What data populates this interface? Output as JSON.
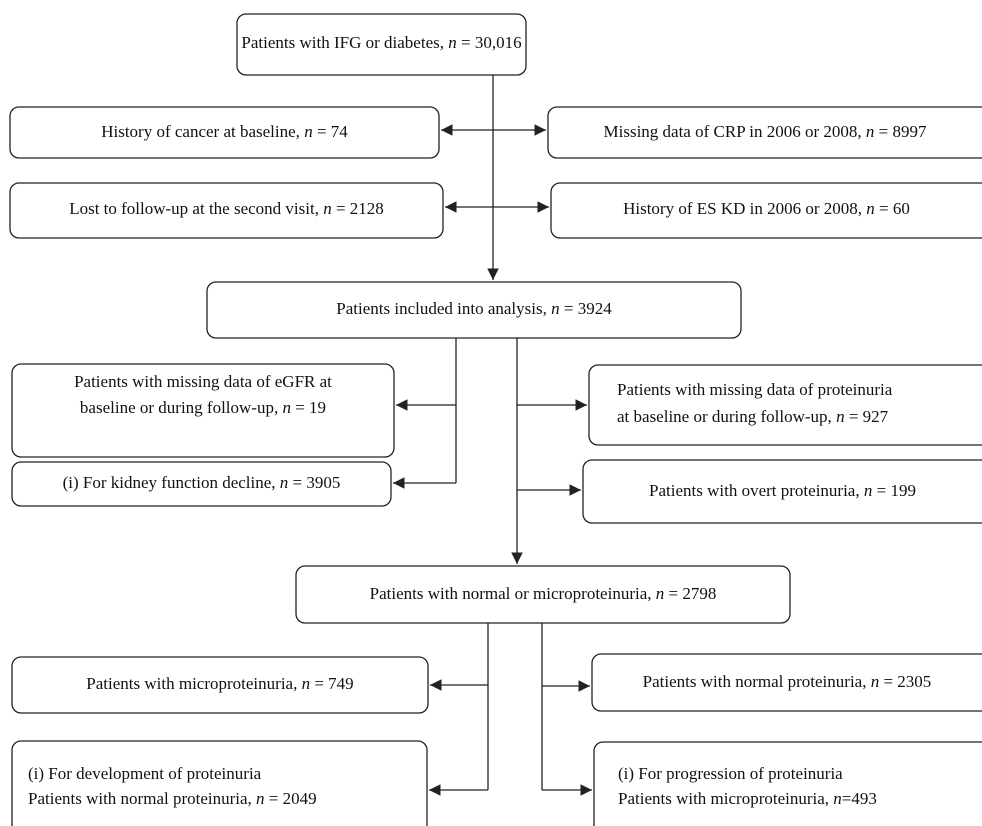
{
  "nodes": [
    {
      "lines": [
        [
          "Patients with IFG or diabetes, ",
          "n",
          " = 30,016"
        ]
      ]
    },
    {
      "lines": [
        [
          "History of cancer at baseline, ",
          "n",
          " = 74"
        ]
      ]
    },
    {
      "lines": [
        [
          "Missing data of CRP in 2006 or 2008, ",
          "n",
          " = 8997"
        ]
      ]
    },
    {
      "lines": [
        [
          "Lost to follow-up at the second visit, ",
          "n",
          " = 2128"
        ]
      ]
    },
    {
      "lines": [
        [
          "History of ES KD in 2006 or 2008, ",
          "n",
          " = 60"
        ]
      ]
    },
    {
      "lines": [
        [
          "Patients included into analysis, ",
          "n",
          " = 3924"
        ]
      ]
    },
    {
      "lines": [
        [
          "Patients with missing data of eGFR at"
        ],
        [
          "baseline or during follow-up, ",
          "n",
          " = 19"
        ]
      ]
    },
    {
      "lines": [
        [
          "Patients with missing data of proteinuria"
        ],
        [
          "at baseline or during follow-up, ",
          "n",
          " = 927"
        ]
      ]
    },
    {
      "lines": [
        [
          "(i) For kidney function decline, ",
          "n",
          " = 3905"
        ]
      ]
    },
    {
      "lines": [
        [
          "Patients with overt proteinuria, ",
          "n",
          " = 199"
        ]
      ]
    },
    {
      "lines": [
        [
          "Patients with normal or microproteinuria, ",
          "n",
          " = 2798"
        ]
      ]
    },
    {
      "lines": [
        [
          "Patients with microproteinuria, ",
          "n",
          " = 749"
        ]
      ]
    },
    {
      "lines": [
        [
          "Patients with normal proteinuria, ",
          "n",
          " = 2305"
        ]
      ]
    },
    {
      "lines": [
        [
          "(i) For development of proteinuria"
        ],
        [
          "Patients with normal proteinuria, ",
          "n",
          " = 2049"
        ]
      ]
    },
    {
      "lines": [
        [
          "(i) For progression of proteinuria"
        ],
        [
          "Patients with microproteinuria, ",
          "n",
          "=493"
        ]
      ]
    }
  ]
}
